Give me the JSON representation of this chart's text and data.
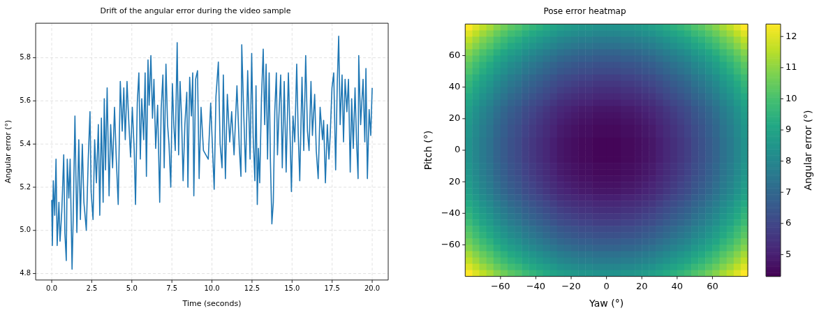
{
  "chart_data": [
    {
      "type": "line",
      "title": "Drift of the angular error during the video sample",
      "xlabel": "Time (seconds)",
      "ylabel": "Angular error (°)",
      "xlim": [
        -1,
        21
      ],
      "ylim": [
        4.77,
        5.96
      ],
      "xticks": [
        {
          "value": 0,
          "label": "0.0"
        },
        2.5,
        {
          "value": 5,
          "label": "5.0"
        },
        7.5,
        {
          "value": 10,
          "label": "10.0"
        },
        12.5,
        {
          "value": 15,
          "label": "15.0"
        },
        17.5,
        {
          "value": 20,
          "label": "20.0"
        }
      ],
      "yticks": [
        4.8,
        {
          "value": 5,
          "label": "5.0"
        },
        5.2,
        5.4,
        5.6,
        5.8
      ],
      "grid": true,
      "x": [
        0,
        0.04,
        0.1,
        0.19,
        0.27,
        0.34,
        0.45,
        0.52,
        0.63,
        0.75,
        0.82,
        0.91,
        0.97,
        1.07,
        1.15,
        1.27,
        1.34,
        1.45,
        1.57,
        1.69,
        1.79,
        1.91,
        2.01,
        2.16,
        2.28,
        2.39,
        2.46,
        2.58,
        2.68,
        2.79,
        2.91,
        3.0,
        3.1,
        3.21,
        3.28,
        3.36,
        3.46,
        3.58,
        3.68,
        3.8,
        3.92,
        4.03,
        4.15,
        4.28,
        4.4,
        4.5,
        4.59,
        4.7,
        4.8,
        4.92,
        5.03,
        5.15,
        5.23,
        5.34,
        5.44,
        5.53,
        5.62,
        5.74,
        5.83,
        5.91,
        6.01,
        6.08,
        6.19,
        6.29,
        6.38,
        6.49,
        6.61,
        6.74,
        6.83,
        6.94,
        7.02,
        7.13,
        7.23,
        7.32,
        7.43,
        7.53,
        7.62,
        7.71,
        7.83,
        7.92,
        8.01,
        8.1,
        8.2,
        8.31,
        8.43,
        8.5,
        8.61,
        8.72,
        8.8,
        8.87,
        8.98,
        9.1,
        9.2,
        9.32,
        9.47,
        9.77,
        9.92,
        10.14,
        10.25,
        10.4,
        10.51,
        10.63,
        10.71,
        10.84,
        10.96,
        11.11,
        11.23,
        11.38,
        11.56,
        11.71,
        11.81,
        11.86,
        11.98,
        12.1,
        12.23,
        12.38,
        12.48,
        12.57,
        12.68,
        12.75,
        12.83,
        12.9,
        12.98,
        13.09,
        13.2,
        13.29,
        13.38,
        13.47,
        13.57,
        13.65,
        13.74,
        13.83,
        13.92,
        14.02,
        14.09,
        14.18,
        14.29,
        14.39,
        14.51,
        14.63,
        14.77,
        14.87,
        14.96,
        15.06,
        15.17,
        15.29,
        15.38,
        15.48,
        15.62,
        15.73,
        15.85,
        15.96,
        16.06,
        16.18,
        16.27,
        16.41,
        16.51,
        16.63,
        16.75,
        16.9,
        16.97,
        17.08,
        17.2,
        17.3,
        17.38,
        17.49,
        17.6,
        17.72,
        17.82,
        17.91,
        18.0,
        18.12,
        18.21,
        18.31,
        18.42,
        18.52,
        18.63,
        18.72,
        18.82,
        18.93,
        19.02,
        19.12,
        19.16,
        19.28,
        19.43,
        19.54,
        19.61,
        19.7,
        19.81,
        19.91,
        20.0
      ],
      "series": [
        {
          "color": "#1f77b4",
          "values": [
            5.14,
            4.93,
            5.23,
            5.07,
            5.33,
            4.93,
            5.13,
            4.95,
            5.09,
            5.35,
            4.99,
            4.86,
            5.33,
            5.15,
            5.33,
            4.82,
            5.05,
            5.53,
            4.99,
            5.42,
            5.05,
            5.4,
            5.13,
            5.0,
            5.33,
            5.55,
            5.18,
            5.05,
            5.42,
            5.22,
            5.49,
            5.07,
            5.52,
            5.13,
            5.61,
            5.28,
            5.66,
            5.16,
            5.49,
            5.29,
            5.57,
            5.33,
            5.12,
            5.69,
            5.46,
            5.66,
            5.42,
            5.69,
            5.52,
            5.34,
            5.57,
            5.37,
            5.12,
            5.59,
            5.73,
            5.33,
            5.61,
            5.42,
            5.73,
            5.25,
            5.79,
            5.58,
            5.81,
            5.52,
            5.7,
            5.38,
            5.58,
            5.13,
            5.56,
            5.72,
            5.29,
            5.77,
            5.49,
            5.4,
            5.2,
            5.68,
            5.49,
            5.37,
            5.87,
            5.35,
            5.69,
            5.53,
            5.23,
            5.49,
            5.64,
            5.2,
            5.71,
            5.53,
            5.73,
            5.16,
            5.7,
            5.74,
            5.24,
            5.57,
            5.37,
            5.33,
            5.59,
            5.19,
            5.62,
            5.78,
            5.4,
            5.29,
            5.72,
            5.24,
            5.63,
            5.41,
            5.55,
            5.35,
            5.67,
            5.38,
            5.25,
            5.86,
            5.55,
            5.27,
            5.74,
            5.33,
            5.82,
            5.44,
            5.23,
            5.67,
            5.12,
            5.38,
            5.22,
            5.61,
            5.84,
            5.49,
            5.77,
            5.33,
            5.73,
            5.32,
            5.03,
            5.13,
            5.55,
            5.73,
            5.35,
            5.53,
            5.72,
            5.29,
            5.69,
            5.27,
            5.73,
            5.46,
            5.18,
            5.53,
            5.41,
            5.77,
            5.46,
            5.23,
            5.71,
            5.37,
            5.81,
            5.46,
            5.37,
            5.69,
            5.44,
            5.63,
            5.37,
            5.24,
            5.57,
            5.42,
            5.51,
            5.22,
            5.49,
            5.33,
            5.44,
            5.66,
            5.73,
            5.28,
            5.68,
            5.9,
            5.49,
            5.72,
            5.41,
            5.7,
            5.55,
            5.7,
            5.27,
            5.61,
            5.38,
            5.66,
            5.42,
            5.24,
            5.81,
            5.49,
            5.7,
            5.41,
            5.75,
            5.24,
            5.56,
            5.44,
            5.66
          ]
        }
      ]
    },
    {
      "type": "heatmap",
      "title": "Pose error heatmap",
      "xlabel": "Yaw (°)",
      "ylabel": "Pitch (°)",
      "clabel": "Angular error (°)",
      "xlim": [
        -80,
        80
      ],
      "ylim": [
        -80,
        80
      ],
      "xticks": [
        {
          "value": -60,
          "label": "−60"
        },
        {
          "value": -40,
          "label": "−40"
        },
        {
          "value": -20,
          "label": "−20"
        },
        0,
        20,
        40,
        60
      ],
      "yticks": [
        {
          "value": -60,
          "label": "−60"
        },
        {
          "value": -40,
          "label": "−40"
        },
        {
          "value": -20,
          "label": "20"
        },
        0,
        20,
        40,
        60
      ],
      "clim": [
        4.3,
        12.4
      ],
      "cticks": [
        5,
        6,
        7,
        8,
        9,
        10,
        11,
        12
      ],
      "cells": [
        [
          12.4,
          12.0,
          11.6,
          11.3,
          10.9,
          10.6,
          10.3,
          10.1,
          9.8,
          9.6,
          9.4,
          9.2,
          9.0,
          8.8,
          8.7,
          8.6,
          8.5,
          8.5,
          8.4,
          8.4,
          8.4,
          8.4,
          8.5,
          8.5,
          8.6,
          8.7,
          8.8,
          9.0,
          9.2,
          9.4,
          9.6,
          9.8,
          10.1,
          10.3,
          10.6,
          10.9,
          11.3,
          11.6,
          12.0,
          12.4
        ],
        [
          12.0,
          11.6,
          11.2,
          10.9,
          10.5,
          10.2,
          9.9,
          9.7,
          9.4,
          9.2,
          9.0,
          8.8,
          8.6,
          8.4,
          8.3,
          8.2,
          8.1,
          8.1,
          8.0,
          8.0,
          8.0,
          8.0,
          8.1,
          8.1,
          8.2,
          8.3,
          8.4,
          8.6,
          8.8,
          9.0,
          9.2,
          9.4,
          9.7,
          9.9,
          10.2,
          10.5,
          10.9,
          11.2,
          11.6,
          12.0
        ],
        [
          11.6,
          11.2,
          10.8,
          10.5,
          10.1,
          9.8,
          9.5,
          9.3,
          9.0,
          8.8,
          8.6,
          8.4,
          8.2,
          8.0,
          7.9,
          7.8,
          7.7,
          7.7,
          7.6,
          7.6,
          7.6,
          7.6,
          7.7,
          7.7,
          7.8,
          7.9,
          8.0,
          8.2,
          8.4,
          8.6,
          8.8,
          9.0,
          9.3,
          9.5,
          9.8,
          10.1,
          10.5,
          10.8,
          11.2,
          11.6
        ],
        [
          11.3,
          10.9,
          10.5,
          10.2,
          9.8,
          9.5,
          9.2,
          9.0,
          8.7,
          8.5,
          8.3,
          8.1,
          7.9,
          7.7,
          7.6,
          7.5,
          7.4,
          7.4,
          7.3,
          7.3,
          7.3,
          7.3,
          7.4,
          7.4,
          7.5,
          7.6,
          7.7,
          7.9,
          8.1,
          8.3,
          8.5,
          8.7,
          9.0,
          9.2,
          9.5,
          9.8,
          10.2,
          10.5,
          10.9,
          11.3
        ],
        [
          10.9,
          10.5,
          10.1,
          9.8,
          9.4,
          9.1,
          8.8,
          8.6,
          8.3,
          8.1,
          7.9,
          7.7,
          7.5,
          7.3,
          7.2,
          7.1,
          7.0,
          7.0,
          6.9,
          6.9,
          6.9,
          6.9,
          7.0,
          7.0,
          7.1,
          7.2,
          7.3,
          7.5,
          7.7,
          7.9,
          8.1,
          8.3,
          8.6,
          8.8,
          9.1,
          9.4,
          9.8,
          10.1,
          10.5,
          10.9
        ],
        [
          10.6,
          10.2,
          9.8,
          9.5,
          9.1,
          8.8,
          8.5,
          8.3,
          8.0,
          7.8,
          7.6,
          7.4,
          7.2,
          7.0,
          6.9,
          6.8,
          6.7,
          6.7,
          6.6,
          6.6,
          6.6,
          6.6,
          6.7,
          6.7,
          6.8,
          6.9,
          7.0,
          7.2,
          7.4,
          7.6,
          7.8,
          8.0,
          8.3,
          8.5,
          8.8,
          9.1,
          9.5,
          9.8,
          10.2,
          10.6
        ],
        [
          10.3,
          9.9,
          9.5,
          9.2,
          8.8,
          8.5,
          8.2,
          8.0,
          7.7,
          7.5,
          7.3,
          7.1,
          6.9,
          6.7,
          6.6,
          6.5,
          6.4,
          6.4,
          6.3,
          6.3,
          6.3,
          6.3,
          6.4,
          6.4,
          6.5,
          6.6,
          6.7,
          6.9,
          7.1,
          7.3,
          7.5,
          7.7,
          8.0,
          8.2,
          8.5,
          8.8,
          9.2,
          9.5,
          9.9,
          10.3
        ],
        [
          10.1,
          9.7,
          9.3,
          9.0,
          8.6,
          8.3,
          8.0,
          7.8,
          7.5,
          7.3,
          7.1,
          6.9,
          6.7,
          6.5,
          6.4,
          6.3,
          6.2,
          6.2,
          6.1,
          6.1,
          6.1,
          6.1,
          6.2,
          6.2,
          6.3,
          6.4,
          6.5,
          6.7,
          6.9,
          7.1,
          7.3,
          7.5,
          7.8,
          8.0,
          8.3,
          8.6,
          9.0,
          9.3,
          9.7,
          10.1
        ],
        [
          9.8,
          9.4,
          9.0,
          8.7,
          8.3,
          8.0,
          7.7,
          7.5,
          7.2,
          7.0,
          6.8,
          6.6,
          6.4,
          6.2,
          6.1,
          6.0,
          5.9,
          5.9,
          5.8,
          5.8,
          5.8,
          5.8,
          5.9,
          5.9,
          6.0,
          6.1,
          6.2,
          6.4,
          6.6,
          6.8,
          7.0,
          7.2,
          7.5,
          7.7,
          8.0,
          8.3,
          8.7,
          9.0,
          9.4,
          9.8
        ],
        [
          9.6,
          9.2,
          8.8,
          8.5,
          8.1,
          7.8,
          7.5,
          7.3,
          7.0,
          6.8,
          6.6,
          6.4,
          6.2,
          6.0,
          5.9,
          5.8,
          5.7,
          5.7,
          5.6,
          5.6,
          5.6,
          5.6,
          5.7,
          5.7,
          5.8,
          5.9,
          6.0,
          6.2,
          6.4,
          6.6,
          6.8,
          7.0,
          7.3,
          7.5,
          7.8,
          8.1,
          8.5,
          8.8,
          9.2,
          9.6
        ],
        [
          9.4,
          9.0,
          8.6,
          8.3,
          7.9,
          7.6,
          7.3,
          7.1,
          6.8,
          6.6,
          6.4,
          6.2,
          6.0,
          5.8,
          5.7,
          5.6,
          5.5,
          5.5,
          5.4,
          5.4,
          5.4,
          5.4,
          5.5,
          5.5,
          5.6,
          5.7,
          5.8,
          6.0,
          6.2,
          6.4,
          6.6,
          6.8,
          7.1,
          7.3,
          7.6,
          7.9,
          8.3,
          8.6,
          9.0,
          9.4
        ],
        [
          9.2,
          8.8,
          8.4,
          8.1,
          7.7,
          7.4,
          7.1,
          6.9,
          6.6,
          6.4,
          6.2,
          6.0,
          5.8,
          5.6,
          5.5,
          5.4,
          5.3,
          5.3,
          5.2,
          5.2,
          5.2,
          5.2,
          5.3,
          5.3,
          5.4,
          5.5,
          5.6,
          5.8,
          6.0,
          6.2,
          6.4,
          6.6,
          6.9,
          7.1,
          7.4,
          7.7,
          8.1,
          8.4,
          8.8,
          9.2
        ],
        [
          9.0,
          8.6,
          8.2,
          7.9,
          7.5,
          7.2,
          6.9,
          6.7,
          6.4,
          6.2,
          6.0,
          5.8,
          5.6,
          5.4,
          5.3,
          5.2,
          5.1,
          5.1,
          5.0,
          5.0,
          5.0,
          5.0,
          5.1,
          5.1,
          5.2,
          5.3,
          5.4,
          5.6,
          5.8,
          6.0,
          6.2,
          6.4,
          6.7,
          6.9,
          7.2,
          7.5,
          7.9,
          8.2,
          8.6,
          9.0
        ],
        [
          8.8,
          8.4,
          8.0,
          7.7,
          7.3,
          7.0,
          6.7,
          6.5,
          6.2,
          6.0,
          5.8,
          5.6,
          5.4,
          5.2,
          5.1,
          5.0,
          4.9,
          4.9,
          4.8,
          4.8,
          4.8,
          4.8,
          4.9,
          4.9,
          5.0,
          5.1,
          5.2,
          5.4,
          5.6,
          5.8,
          6.0,
          6.2,
          6.5,
          6.7,
          7.0,
          7.3,
          7.7,
          8.0,
          8.4,
          8.8
        ],
        [
          8.7,
          8.3,
          7.9,
          7.6,
          7.2,
          6.9,
          6.6,
          6.4,
          6.1,
          5.9,
          5.7,
          5.5,
          5.3,
          5.1,
          5.0,
          4.9,
          4.8,
          4.8,
          4.7,
          4.7,
          4.7,
          4.7,
          4.8,
          4.8,
          4.9,
          5.0,
          5.1,
          5.3,
          5.5,
          5.7,
          5.9,
          6.1,
          6.4,
          6.6,
          6.9,
          7.2,
          7.6,
          7.9,
          8.3,
          8.7
        ],
        [
          8.6,
          8.2,
          7.8,
          7.5,
          7.1,
          6.8,
          6.5,
          6.3,
          6.0,
          5.8,
          5.6,
          5.4,
          5.2,
          5.0,
          4.9,
          4.8,
          4.7,
          4.7,
          4.6,
          4.6,
          4.6,
          4.6,
          4.7,
          4.7,
          4.8,
          4.9,
          5.0,
          5.2,
          5.4,
          5.6,
          5.8,
          6.0,
          6.3,
          6.5,
          6.8,
          7.1,
          7.5,
          7.8,
          8.2,
          8.6
        ],
        [
          8.5,
          8.1,
          7.7,
          7.4,
          7.0,
          6.7,
          6.4,
          6.2,
          5.9,
          5.7,
          5.5,
          5.3,
          5.1,
          4.9,
          4.8,
          4.7,
          4.6,
          4.6,
          4.5,
          4.5,
          4.5,
          4.5,
          4.6,
          4.6,
          4.7,
          4.8,
          4.9,
          5.1,
          5.3,
          5.5,
          5.7,
          5.9,
          6.2,
          6.4,
          6.7,
          7.0,
          7.4,
          7.7,
          8.1,
          8.5
        ],
        [
          8.5,
          8.1,
          7.7,
          7.4,
          7.0,
          6.7,
          6.4,
          6.2,
          5.9,
          5.7,
          5.5,
          5.3,
          5.1,
          4.9,
          4.8,
          4.7,
          4.6,
          4.6,
          4.5,
          4.5,
          4.5,
          4.5,
          4.6,
          4.6,
          4.7,
          4.8,
          4.9,
          5.1,
          5.3,
          5.5,
          5.7,
          5.9,
          6.2,
          6.4,
          6.7,
          7.0,
          7.4,
          7.7,
          8.1,
          8.5
        ],
        [
          8.4,
          8.0,
          7.6,
          7.3,
          6.9,
          6.6,
          6.3,
          6.1,
          5.8,
          5.6,
          5.4,
          5.2,
          5.0,
          4.8,
          4.7,
          4.6,
          4.5,
          4.5,
          4.4,
          4.4,
          4.4,
          4.4,
          4.5,
          4.5,
          4.6,
          4.7,
          4.8,
          5.0,
          5.2,
          5.4,
          5.6,
          5.8,
          6.1,
          6.3,
          6.6,
          6.9,
          7.3,
          7.6,
          8.0,
          8.4
        ],
        [
          8.4,
          8.0,
          7.6,
          7.3,
          6.9,
          6.6,
          6.3,
          6.1,
          5.8,
          5.6,
          5.4,
          5.2,
          5.0,
          4.8,
          4.7,
          4.6,
          4.5,
          4.5,
          4.4,
          4.4,
          4.4,
          4.4,
          4.5,
          4.5,
          4.6,
          4.7,
          4.8,
          5.0,
          5.2,
          5.4,
          5.6,
          5.8,
          6.1,
          6.3,
          6.6,
          6.9,
          7.3,
          7.6,
          8.0,
          8.4
        ],
        [
          8.4,
          8.0,
          7.6,
          7.3,
          6.9,
          6.6,
          6.3,
          6.1,
          5.8,
          5.6,
          5.4,
          5.2,
          5.0,
          4.8,
          4.7,
          4.6,
          4.5,
          4.5,
          4.4,
          4.4,
          4.4,
          4.4,
          4.5,
          4.5,
          4.6,
          4.7,
          4.8,
          5.0,
          5.2,
          5.4,
          5.6,
          5.8,
          6.1,
          6.3,
          6.6,
          6.9,
          7.3,
          7.6,
          8.0,
          8.4
        ],
        [
          8.4,
          8.0,
          7.6,
          7.3,
          6.9,
          6.6,
          6.3,
          6.1,
          5.8,
          5.6,
          5.4,
          5.2,
          5.0,
          4.8,
          4.7,
          4.6,
          4.5,
          4.5,
          4.4,
          4.4,
          4.4,
          4.4,
          4.5,
          4.5,
          4.6,
          4.7,
          4.8,
          5.0,
          5.2,
          5.4,
          5.6,
          5.8,
          6.1,
          6.3,
          6.6,
          6.9,
          7.3,
          7.6,
          8.0,
          8.4
        ],
        [
          8.5,
          8.1,
          7.7,
          7.4,
          7.0,
          6.7,
          6.4,
          6.2,
          5.9,
          5.7,
          5.5,
          5.3,
          5.1,
          4.9,
          4.8,
          4.7,
          4.6,
          4.6,
          4.5,
          4.5,
          4.5,
          4.5,
          4.6,
          4.6,
          4.7,
          4.8,
          4.9,
          5.1,
          5.3,
          5.5,
          5.7,
          5.9,
          6.2,
          6.4,
          6.7,
          7.0,
          7.4,
          7.7,
          8.1,
          8.5
        ],
        [
          8.5,
          8.1,
          7.7,
          7.4,
          7.0,
          6.7,
          6.4,
          6.2,
          5.9,
          5.7,
          5.5,
          5.3,
          5.1,
          4.9,
          4.8,
          4.7,
          4.6,
          4.6,
          4.5,
          4.5,
          4.5,
          4.5,
          4.6,
          4.6,
          4.7,
          4.8,
          4.9,
          5.1,
          5.3,
          5.5,
          5.7,
          5.9,
          6.2,
          6.4,
          6.7,
          7.0,
          7.4,
          7.7,
          8.1,
          8.5
        ],
        [
          8.6,
          8.2,
          7.8,
          7.5,
          7.1,
          6.8,
          6.5,
          6.3,
          6.0,
          5.8,
          5.6,
          5.4,
          5.2,
          5.0,
          4.9,
          4.8,
          4.7,
          4.7,
          4.6,
          4.6,
          4.6,
          4.6,
          4.7,
          4.7,
          4.8,
          4.9,
          5.0,
          5.2,
          5.4,
          5.6,
          5.8,
          6.0,
          6.3,
          6.5,
          6.8,
          7.1,
          7.5,
          7.8,
          8.2,
          8.6
        ],
        [
          8.7,
          8.3,
          7.9,
          7.6,
          7.2,
          6.9,
          6.6,
          6.4,
          6.1,
          5.9,
          5.7,
          5.5,
          5.3,
          5.1,
          5.0,
          4.9,
          4.8,
          4.8,
          4.7,
          4.7,
          4.7,
          4.7,
          4.8,
          4.8,
          4.9,
          5.0,
          5.1,
          5.3,
          5.5,
          5.7,
          5.9,
          6.1,
          6.4,
          6.6,
          6.9,
          7.2,
          7.6,
          7.9,
          8.3,
          8.7
        ],
        [
          8.8,
          8.4,
          8.0,
          7.7,
          7.3,
          7.0,
          6.7,
          6.5,
          6.2,
          6.0,
          5.8,
          5.6,
          5.4,
          5.2,
          5.1,
          5.0,
          4.9,
          4.9,
          4.8,
          4.8,
          4.8,
          4.8,
          4.9,
          4.9,
          5.0,
          5.1,
          5.2,
          5.4,
          5.6,
          5.8,
          6.0,
          6.2,
          6.5,
          6.7,
          7.0,
          7.3,
          7.7,
          8.0,
          8.4,
          8.8
        ],
        [
          9.0,
          8.6,
          8.2,
          7.9,
          7.5,
          7.2,
          6.9,
          6.7,
          6.4,
          6.2,
          6.0,
          5.8,
          5.6,
          5.4,
          5.3,
          5.2,
          5.1,
          5.1,
          5.0,
          5.0,
          5.0,
          5.0,
          5.1,
          5.1,
          5.2,
          5.3,
          5.4,
          5.6,
          5.8,
          6.0,
          6.2,
          6.4,
          6.7,
          6.9,
          7.2,
          7.5,
          7.9,
          8.2,
          8.6,
          9.0
        ],
        [
          9.2,
          8.8,
          8.4,
          8.1,
          7.7,
          7.4,
          7.1,
          6.9,
          6.6,
          6.4,
          6.2,
          6.0,
          5.8,
          5.6,
          5.5,
          5.4,
          5.3,
          5.3,
          5.2,
          5.2,
          5.2,
          5.2,
          5.3,
          5.3,
          5.4,
          5.5,
          5.6,
          5.8,
          6.0,
          6.2,
          6.4,
          6.6,
          6.9,
          7.1,
          7.4,
          7.7,
          8.1,
          8.4,
          8.8,
          9.2
        ],
        [
          9.4,
          9.0,
          8.6,
          8.3,
          7.9,
          7.6,
          7.3,
          7.1,
          6.8,
          6.6,
          6.4,
          6.2,
          6.0,
          5.8,
          5.7,
          5.6,
          5.5,
          5.5,
          5.4,
          5.4,
          5.4,
          5.4,
          5.5,
          5.5,
          5.6,
          5.7,
          5.8,
          6.0,
          6.2,
          6.4,
          6.6,
          6.8,
          7.1,
          7.3,
          7.6,
          7.9,
          8.3,
          8.6,
          9.0,
          9.4
        ],
        [
          9.6,
          9.2,
          8.8,
          8.5,
          8.1,
          7.8,
          7.5,
          7.3,
          7.0,
          6.8,
          6.6,
          6.4,
          6.2,
          6.0,
          5.9,
          5.8,
          5.7,
          5.7,
          5.6,
          5.6,
          5.6,
          5.6,
          5.7,
          5.7,
          5.8,
          5.9,
          6.0,
          6.2,
          6.4,
          6.6,
          6.8,
          7.0,
          7.3,
          7.5,
          7.8,
          8.1,
          8.5,
          8.8,
          9.2,
          9.6
        ],
        [
          9.8,
          9.4,
          9.0,
          8.7,
          8.3,
          8.0,
          7.7,
          7.5,
          7.2,
          7.0,
          6.8,
          6.6,
          6.4,
          6.2,
          6.1,
          6.0,
          5.9,
          5.9,
          5.8,
          5.8,
          5.8,
          5.8,
          5.9,
          5.9,
          6.0,
          6.1,
          6.2,
          6.4,
          6.6,
          6.8,
          7.0,
          7.2,
          7.5,
          7.7,
          8.0,
          8.3,
          8.7,
          9.0,
          9.4,
          9.8
        ],
        [
          10.1,
          9.7,
          9.3,
          9.0,
          8.6,
          8.3,
          8.0,
          7.8,
          7.5,
          7.3,
          7.1,
          6.9,
          6.7,
          6.5,
          6.4,
          6.3,
          6.2,
          6.2,
          6.1,
          6.1,
          6.1,
          6.1,
          6.2,
          6.2,
          6.3,
          6.4,
          6.5,
          6.7,
          6.9,
          7.1,
          7.3,
          7.5,
          7.8,
          8.0,
          8.3,
          8.6,
          9.0,
          9.3,
          9.7,
          10.1
        ],
        [
          10.3,
          9.9,
          9.5,
          9.2,
          8.8,
          8.5,
          8.2,
          8.0,
          7.7,
          7.5,
          7.3,
          7.1,
          6.9,
          6.7,
          6.6,
          6.5,
          6.4,
          6.4,
          6.3,
          6.3,
          6.3,
          6.3,
          6.4,
          6.4,
          6.5,
          6.6,
          6.7,
          6.9,
          7.1,
          7.3,
          7.5,
          7.7,
          8.0,
          8.2,
          8.5,
          8.8,
          9.2,
          9.5,
          9.9,
          10.3
        ],
        [
          10.6,
          10.2,
          9.8,
          9.5,
          9.1,
          8.8,
          8.5,
          8.3,
          8.0,
          7.8,
          7.6,
          7.4,
          7.2,
          7.0,
          6.9,
          6.8,
          6.7,
          6.7,
          6.6,
          6.6,
          6.6,
          6.6,
          6.7,
          6.7,
          6.8,
          6.9,
          7.0,
          7.2,
          7.4,
          7.6,
          7.8,
          8.0,
          8.3,
          8.5,
          8.8,
          9.1,
          9.5,
          9.8,
          10.2,
          10.6
        ],
        [
          10.9,
          10.5,
          10.1,
          9.8,
          9.4,
          9.1,
          8.8,
          8.6,
          8.3,
          8.1,
          7.9,
          7.7,
          7.5,
          7.3,
          7.2,
          7.1,
          7.0,
          7.0,
          6.9,
          6.9,
          6.9,
          6.9,
          7.0,
          7.0,
          7.1,
          7.2,
          7.3,
          7.5,
          7.7,
          7.9,
          8.1,
          8.3,
          8.6,
          8.8,
          9.1,
          9.4,
          9.8,
          10.1,
          10.5,
          10.9
        ],
        [
          11.3,
          10.9,
          10.5,
          10.2,
          9.8,
          9.5,
          9.2,
          9.0,
          8.7,
          8.5,
          8.3,
          8.1,
          7.9,
          7.7,
          7.6,
          7.5,
          7.4,
          7.4,
          7.3,
          7.3,
          7.3,
          7.3,
          7.4,
          7.4,
          7.5,
          7.6,
          7.7,
          7.9,
          8.1,
          8.3,
          8.5,
          8.7,
          9.0,
          9.2,
          9.5,
          9.8,
          10.2,
          10.5,
          10.9,
          11.3
        ],
        [
          11.6,
          11.2,
          10.8,
          10.5,
          10.1,
          9.8,
          9.5,
          9.3,
          9.0,
          8.8,
          8.6,
          8.4,
          8.2,
          8.0,
          7.9,
          7.8,
          7.7,
          7.7,
          7.6,
          7.6,
          7.6,
          7.6,
          7.7,
          7.7,
          7.8,
          7.9,
          8.0,
          8.2,
          8.4,
          8.6,
          8.8,
          9.0,
          9.3,
          9.5,
          9.8,
          10.1,
          10.5,
          10.8,
          11.2,
          11.6
        ],
        [
          12.0,
          11.6,
          11.2,
          10.9,
          10.5,
          10.2,
          9.9,
          9.7,
          9.4,
          9.2,
          9.0,
          8.8,
          8.6,
          8.4,
          8.3,
          8.2,
          8.1,
          8.1,
          8.0,
          8.0,
          8.0,
          8.0,
          8.1,
          8.1,
          8.2,
          8.3,
          8.4,
          8.6,
          8.8,
          9.0,
          9.2,
          9.4,
          9.7,
          9.9,
          10.2,
          10.5,
          10.9,
          11.2,
          11.6,
          12.0
        ],
        [
          12.4,
          12.0,
          11.6,
          11.3,
          10.9,
          10.6,
          10.3,
          10.1,
          9.8,
          9.6,
          9.4,
          9.2,
          9.0,
          8.8,
          8.7,
          8.6,
          8.5,
          8.5,
          8.4,
          8.4,
          8.4,
          8.4,
          8.5,
          8.5,
          8.6,
          8.7,
          8.8,
          9.0,
          9.2,
          9.4,
          9.6,
          9.8,
          10.1,
          10.3,
          10.6,
          10.9,
          11.3,
          11.6,
          12.0,
          12.4
        ]
      ]
    }
  ]
}
